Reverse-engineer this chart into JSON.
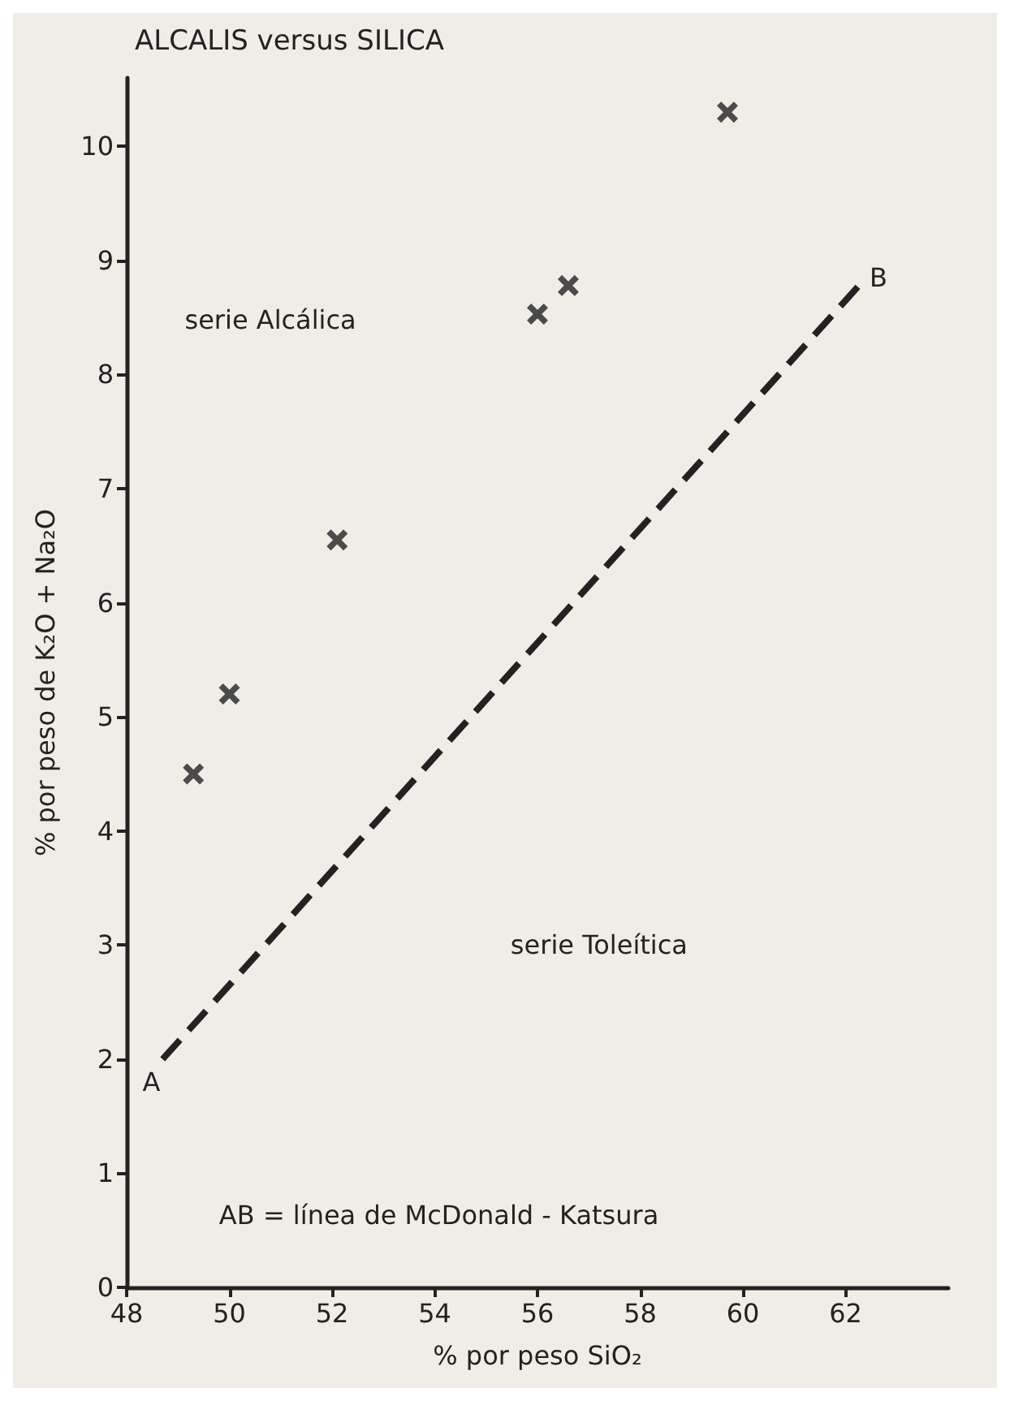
{
  "chart_data": {
    "type": "scatter",
    "title": "ALCALIS versus SILICA",
    "xlabel": "% por peso SiO₂",
    "ylabel": "% por peso de K₂O + Na₂O",
    "xlim": [
      48,
      64
    ],
    "ylim": [
      0,
      10.6
    ],
    "xticks": [
      48,
      50,
      52,
      54,
      56,
      58,
      60,
      62
    ],
    "yticks": [
      0,
      1,
      2,
      3,
      4,
      5,
      6,
      7,
      8,
      9,
      10
    ],
    "grid": false,
    "marker": "cross",
    "series": [
      {
        "color": "#222222",
        "x": [
          49.3,
          50.0,
          52.1,
          56.0,
          56.6,
          59.7
        ],
        "values": [
          4.5,
          5.2,
          6.55,
          8.53,
          8.78,
          10.3
        ]
      },
      {
        "type": "line",
        "color": "#222222",
        "line_style": "dashed",
        "marker": "none",
        "x": [
          48.7,
          62.3
        ],
        "values": [
          2.0,
          8.8
        ]
      }
    ],
    "annotations": [
      "serie Alcálica",
      "serie Toleítica",
      "AB = línea de McDonald - Katsura",
      "A",
      "B"
    ]
  }
}
